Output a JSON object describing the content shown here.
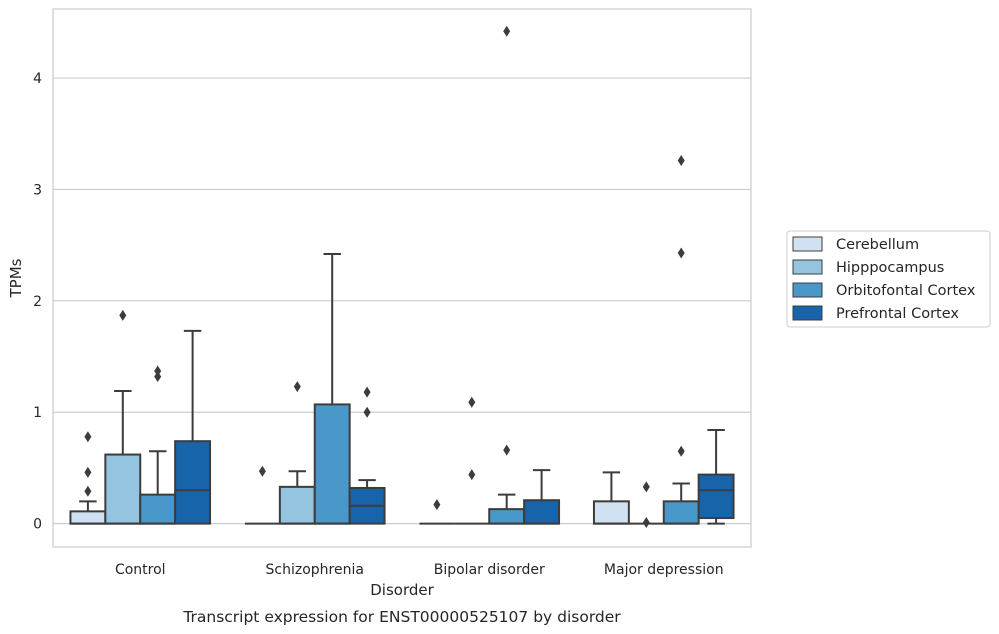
{
  "chart_data": {
    "type": "boxplot",
    "caption": "Transcript expression for ENST00000525107 by disorder",
    "xlabel": "Disorder",
    "ylabel": "TPMs",
    "ylim": [
      -0.21,
      4.62
    ],
    "yticks": [
      0,
      1,
      2,
      3,
      4
    ],
    "grid": true,
    "legend_position": "right",
    "categories": [
      "Control",
      "Schizophrenia",
      "Bipolar disorder",
      "Major depression"
    ],
    "series": [
      {
        "name": "Cerebellum",
        "color": "#d0e1f2",
        "boxes": [
          {
            "whislo": 0,
            "q1": 0,
            "med": 0,
            "q3": 0.11,
            "whishi": 0.2,
            "fliers": [
              0.29,
              0.46,
              0.78
            ]
          },
          {
            "whislo": 0,
            "q1": 0,
            "med": 0,
            "q3": 0,
            "whishi": 0,
            "fliers": [
              0.47
            ]
          },
          {
            "whislo": 0,
            "q1": 0,
            "med": 0,
            "q3": 0,
            "whishi": 0,
            "fliers": [
              0.17
            ]
          },
          {
            "whislo": 0,
            "q1": 0,
            "med": 0,
            "q3": 0.2,
            "whishi": 0.46,
            "fliers": []
          }
        ]
      },
      {
        "name": "Hipppocampus",
        "color": "#94c4df",
        "boxes": [
          {
            "whislo": 0,
            "q1": 0,
            "med": 0,
            "q3": 0.62,
            "whishi": 1.19,
            "fliers": [
              1.87
            ]
          },
          {
            "whislo": 0,
            "q1": 0,
            "med": 0,
            "q3": 0.33,
            "whishi": 0.47,
            "fliers": [
              1.23
            ]
          },
          {
            "whislo": 0,
            "q1": 0,
            "med": 0,
            "q3": 0,
            "whishi": 0,
            "fliers": [
              0.44,
              1.09
            ]
          },
          {
            "whislo": 0,
            "q1": 0,
            "med": 0,
            "q3": 0,
            "whishi": 0,
            "fliers": [
              0.01,
              0.33
            ]
          }
        ]
      },
      {
        "name": "Orbitofontal Cortex",
        "color": "#4a98c9",
        "boxes": [
          {
            "whislo": 0,
            "q1": 0,
            "med": 0,
            "q3": 0.26,
            "whishi": 0.65,
            "fliers": [
              1.32,
              1.37
            ]
          },
          {
            "whislo": 0,
            "q1": 0,
            "med": 0,
            "q3": 1.07,
            "whishi": 2.42,
            "fliers": []
          },
          {
            "whislo": 0,
            "q1": 0,
            "med": 0,
            "q3": 0.13,
            "whishi": 0.26,
            "fliers": [
              0.66,
              4.42
            ]
          },
          {
            "whislo": 0,
            "q1": 0,
            "med": 0,
            "q3": 0.2,
            "whishi": 0.36,
            "fliers": [
              0.65,
              2.43,
              3.26
            ]
          }
        ]
      },
      {
        "name": "Prefrontal Cortex",
        "color": "#1764ab",
        "boxes": [
          {
            "whislo": 0,
            "q1": 0,
            "med": 0.3,
            "q3": 0.74,
            "whishi": 1.73,
            "fliers": []
          },
          {
            "whislo": 0,
            "q1": 0,
            "med": 0.16,
            "q3": 0.32,
            "whishi": 0.39,
            "fliers": [
              1.0,
              1.18
            ]
          },
          {
            "whislo": 0,
            "q1": 0,
            "med": 0,
            "q3": 0.21,
            "whishi": 0.48,
            "fliers": []
          },
          {
            "whislo": 0,
            "q1": 0.05,
            "med": 0.3,
            "q3": 0.44,
            "whishi": 0.84,
            "fliers": []
          }
        ]
      }
    ]
  }
}
